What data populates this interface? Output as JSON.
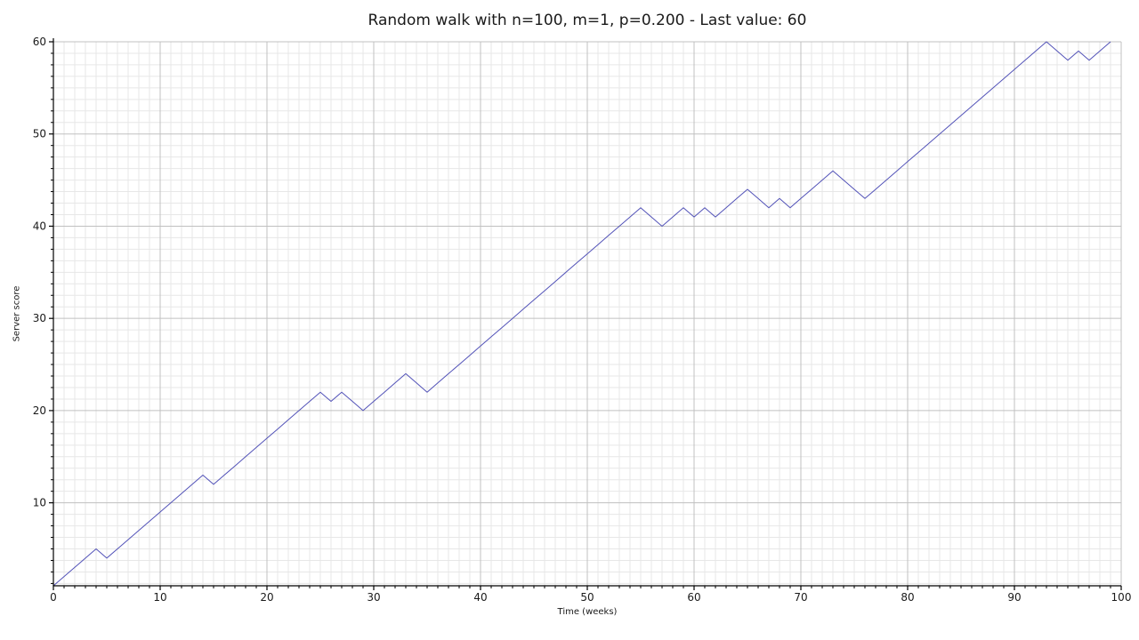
{
  "figure": {
    "title": "Random walk with n=100, m=1, p=0.200 - Last value: 60",
    "xlabel": "Time (weeks)",
    "ylabel": "Server score"
  },
  "chart_data": {
    "type": "line",
    "title": "Random walk with n=100, m=1, p=0.200 - Last value: 60",
    "xlabel": "Time (weeks)",
    "ylabel": "Server score",
    "x_start": 0,
    "x_step": 1,
    "values": [
      1,
      2,
      3,
      4,
      5,
      4,
      5,
      6,
      7,
      8,
      9,
      10,
      11,
      12,
      13,
      12,
      13,
      14,
      15,
      16,
      17,
      18,
      19,
      20,
      21,
      22,
      21,
      22,
      21,
      20,
      21,
      22,
      23,
      24,
      23,
      22,
      23,
      24,
      25,
      26,
      27,
      28,
      29,
      30,
      31,
      32,
      33,
      34,
      35,
      36,
      37,
      38,
      39,
      40,
      41,
      42,
      41,
      40,
      41,
      42,
      41,
      42,
      41,
      42,
      43,
      44,
      43,
      42,
      43,
      42,
      43,
      44,
      45,
      46,
      45,
      44,
      43,
      44,
      45,
      46,
      47,
      48,
      49,
      50,
      51,
      52,
      53,
      54,
      55,
      56,
      57,
      58,
      59,
      60,
      59,
      58,
      59,
      58,
      59,
      60
    ],
    "last_value": 60,
    "xlim": [
      0,
      100
    ],
    "ylim": [
      1,
      60
    ],
    "x_ticks": [
      0,
      10,
      20,
      30,
      40,
      50,
      60,
      70,
      80,
      90,
      100
    ],
    "y_ticks": [
      10,
      20,
      30,
      40,
      50,
      60
    ],
    "x_minor_step": 1,
    "y_minor_step": 1.25,
    "grid": {
      "on": true,
      "major_color": "#c0c0c0",
      "minor_color": "#e7e7e7"
    },
    "line_color": "#5252b8",
    "axis_color": "#000000",
    "legend": null
  }
}
